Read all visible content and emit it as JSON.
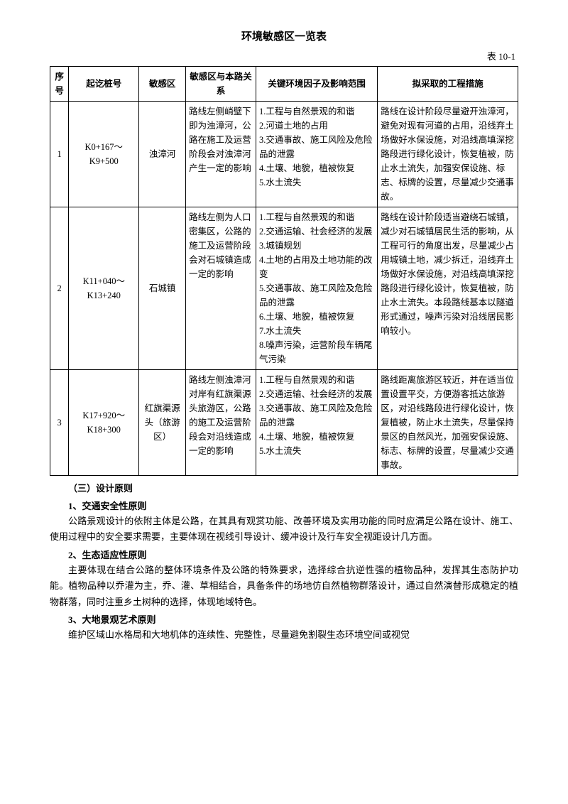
{
  "page": {
    "title": "环境敏感区一览表",
    "tableLabel": "表 10-1"
  },
  "tableHeaders": {
    "seq": "序号",
    "station": "起讫桩号",
    "area": "敏感区",
    "relation": "敏感区与本路关系",
    "factors": "关键环境因子及影响范围",
    "measures": "拟采取的工程措施"
  },
  "rows": [
    {
      "seq": "1",
      "station": "K0+167～K9+500",
      "area": "浊漳河",
      "relation": "路线左侧峭壁下即为浊漳河，公路在施工及运营阶段会对浊漳河产生一定的影响",
      "factors": "1.工程与自然景观的和谐\n2.河道土地的占用\n3.交通事故、施工风险及危险品的泄露\n4.土壤、地貌，植被恢复\n5.水土流失",
      "measures": "路线在设计阶段尽量避开浊漳河，避免对现有河道的占用，沿线弃土场做好水保设施，对沿线高填深挖路段进行绿化设计，恢复植被，防止水土流失，加强安保设施、标志、标牌的设置，尽量减少交通事故。"
    },
    {
      "seq": "2",
      "station": "K11+040～K13+240",
      "area": "石城镇",
      "relation": "路线左侧为人口密集区，公路的施工及运营阶段会对石城镇造成一定的影响",
      "factors": "1.工程与自然景观的和谐\n2.交通运输、社会经济的发展\n3.城镇规划\n4.土地的占用及土地功能的改变\n5.交通事故、施工风险及危险品的泄露\n6.土壤、地貌，植被恢复\n7.水土流失\n8.噪声污染，运营阶段车辆尾气污染",
      "measures": "路线在设计阶段适当避绕石城镇，减少对石城镇居民生活的影响，从工程可行的角度出发，尽量减少占用城镇土地，减少拆迁，沿线弃土场做好水保设施，对沿线高填深挖路段进行绿化设计，恢复植被，防止水土流失。本段路线基本以隧道形式通过，噪声污染对沿线居民影响较小。"
    },
    {
      "seq": "3",
      "station": "K17+920～K18+300",
      "area": "红旗渠源头（旅游区）",
      "relation": "路线左侧浊漳河对岸有红旗渠源头旅游区，公路的施工及运营阶段会对沿线造成一定的影响",
      "factors": "1.工程与自然景观的和谐\n2.交通运输、社会经济的发展\n3.交通事故、施工风险及危险品的泄露\n4.土壤、地貌，植被恢复\n5.水土流失",
      "measures": "路线距离旅游区较近，并在适当位置设置平交，方便游客抵达旅游区，对沿线路段进行绿化设计，恢复植被，防止水土流失，尽量保持景区的自然风光，加强安保设施、标志、标牌的设置，尽量减少交通事故。"
    }
  ],
  "sections": {
    "s3": {
      "title": "（三）设计原则",
      "sub1": {
        "title": "1、交通安全性原则",
        "text": "公路景观设计的依附主体是公路，在其具有观赏功能、改善环境及实用功能的同时应满足公路在设计、施工、使用过程中的安全要求需要，主要体现在视线引导设计、缓冲设计及行车安全视距设计几方面。"
      },
      "sub2": {
        "title": "2、生态适应性原则",
        "text": "主要体现在结合公路的整体环境条件及公路的特殊要求，选择综合抗逆性强的植物品种，发挥其生态防护功能。植物品种以乔灌为主，乔、灌、草相结合，具备条件的场地仿自然植物群落设计，通过自然演替形成稳定的植物群落，同时注重乡土树种的选择，体现地域特色。"
      },
      "sub3": {
        "title": "3、大地景观艺术原则",
        "text": "维护区域山水格局和大地机体的连续性、完整性，尽量避免割裂生态环境空间或视觉"
      }
    }
  }
}
